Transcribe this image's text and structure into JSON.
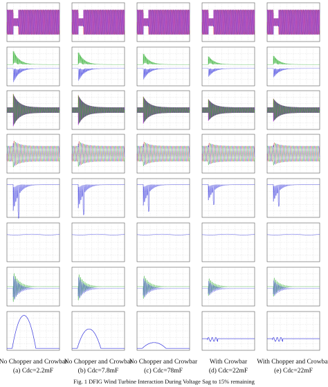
{
  "columns": [
    {
      "title": "No Chopper and Crowbar",
      "subtitle": "(a) Cdc=2.2mF"
    },
    {
      "title": "No Chopper and Crowbar",
      "subtitle": "(b) Cdc=7.8mF"
    },
    {
      "title": "No Chopper and Crowbar",
      "subtitle": "(c) Cdc=78mF"
    },
    {
      "title": "With Crowbar",
      "subtitle": "(d) Cdc=22mF"
    },
    {
      "title": "With Chopper and Crowbar",
      "subtitle": "(e) Cdc=22mF"
    }
  ],
  "caption": "Fig. 1 DFIG Wind Turbine Interaction During Voltage Sag to 15% remaining"
}
